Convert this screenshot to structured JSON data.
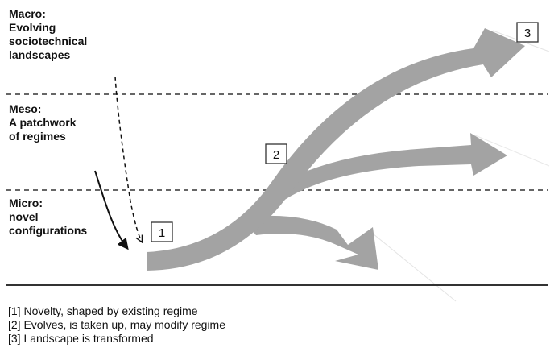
{
  "levels": [
    {
      "id": "macro",
      "lines": [
        "Macro:",
        "Evolving",
        "sociotechnical",
        "landscapes"
      ]
    },
    {
      "id": "meso",
      "lines": [
        "Meso:",
        "A patchwork",
        "of regimes"
      ]
    },
    {
      "id": "micro",
      "lines": [
        "Micro:",
        "novel",
        "configurations"
      ]
    }
  ],
  "boxes": [
    "1",
    "2",
    "3"
  ],
  "legend": [
    "[1] Novelty, shaped by existing regime",
    "[2] Evolves, is taken up, may modify regime",
    "[3] Landscape is transformed"
  ],
  "colors": {
    "arrow_fill": "#a3a3a3",
    "line": "#333333",
    "text": "#111111"
  }
}
